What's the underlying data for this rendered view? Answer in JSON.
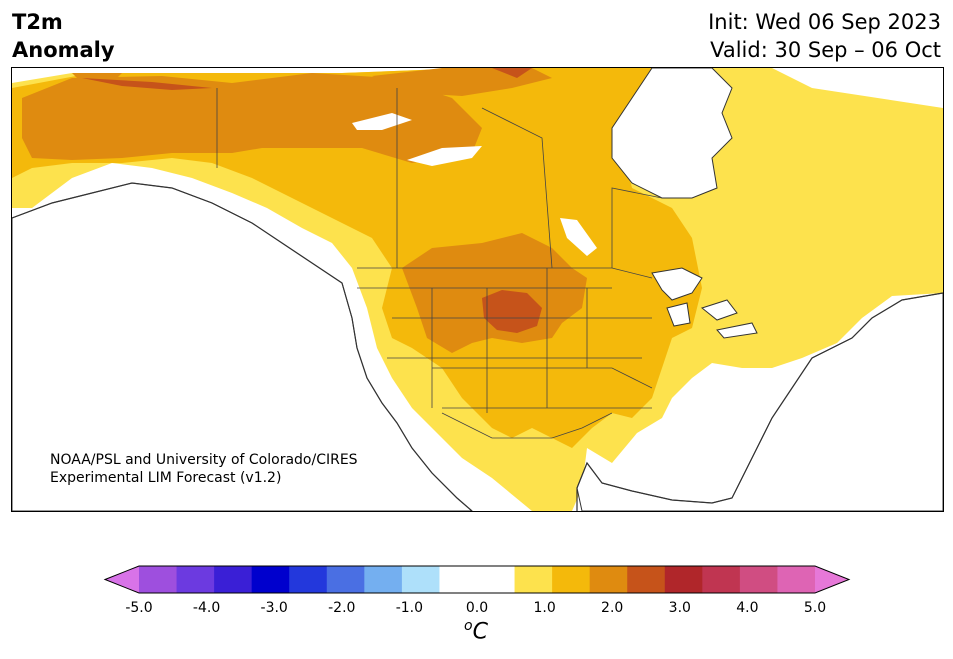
{
  "title": {
    "line1": "T2m",
    "line2": "Anomaly"
  },
  "dates": {
    "init": "Init: Wed 06 Sep 2023",
    "valid": "Valid: 30 Sep – 06 Oct"
  },
  "credit": {
    "line1": "NOAA/PSL and University of Colorado/CIRES",
    "line2": "Experimental LIM Forecast (v1.2)"
  },
  "colorbar": {
    "unit_prefix": "o",
    "unit": "C",
    "ticks": [
      "-5.0",
      "-4.0",
      "-3.0",
      "-2.0",
      "-1.0",
      "0.0",
      "1.0",
      "2.0",
      "3.0",
      "4.0",
      "5.0"
    ],
    "colors": [
      "#d873e8",
      "#9e4fde",
      "#6c3ae0",
      "#3a1fd6",
      "#0000cd",
      "#2338dc",
      "#4a6fe3",
      "#74aff0",
      "#aee0fa",
      "#ffffff",
      "#ffffff",
      "#fde24d",
      "#f4b90b",
      "#df8b10",
      "#c6531a",
      "#b0262a",
      "#c03551",
      "#d04d82",
      "#de64b4",
      "#e678d8"
    ],
    "levels": [
      "-5.0",
      "-4.5",
      "-4.0",
      "-3.5",
      "-3.0",
      "-2.5",
      "-2.0",
      "-1.5",
      "-1.0",
      "-0.5",
      "0.0",
      "0.5",
      "1.0",
      "1.5",
      "2.0",
      "2.5",
      "3.0",
      "3.5",
      "4.0",
      "4.5",
      "5.0"
    ]
  },
  "anomaly_colors": {
    "light_warm": "#fde24d",
    "warm": "#f4b90b",
    "warmer": "#df8b10",
    "hot": "#c6531a",
    "neutral": "#ffffff",
    "ocean": "#ffffff"
  }
}
